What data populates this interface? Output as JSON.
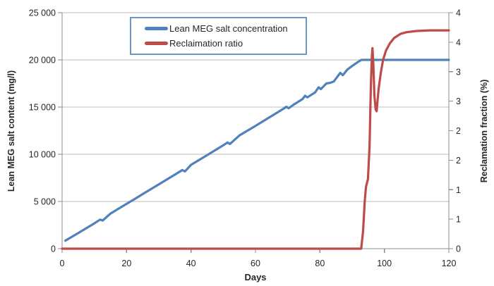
{
  "chart_data": {
    "type": "line",
    "title": "",
    "grid": {
      "horizontal": true,
      "vertical": false
    },
    "legend_position": "top-inside",
    "colors": {
      "axis_line": "#8C8C8C",
      "gridline": "#BDBDBD",
      "text": "#262626",
      "legend_border": "#6E96C4",
      "background": "#FFFFFF",
      "series_blue": "#4F81BD",
      "series_red": "#BE4B48"
    },
    "x_axis": {
      "title": "Days",
      "min": 0,
      "max": 120,
      "tick_values": [
        0,
        20,
        40,
        60,
        80,
        100,
        120
      ],
      "tick_labels": [
        "0",
        "20",
        "40",
        "60",
        "80",
        "100",
        "120"
      ]
    },
    "left_axis": {
      "title": "Lean MEG salt content (mg/l)",
      "min": 0,
      "max": 25000,
      "tick_values": [
        0,
        5000,
        10000,
        15000,
        20000,
        25000
      ],
      "tick_labels": [
        "0",
        "5 000",
        "10 000",
        "15 000",
        "20 000",
        "25 000"
      ]
    },
    "right_axis": {
      "title": "Reclamation fraction (%)",
      "min": 0,
      "max": 4,
      "tick_values": [
        0,
        0.5,
        1,
        1.5,
        2,
        2.5,
        3,
        3.5,
        4
      ],
      "tick_labels": [
        "0",
        "1",
        "1",
        "2",
        "2",
        "3",
        "3",
        "4",
        "4"
      ]
    },
    "series": [
      {
        "id": "lean-meg-salt-concentration",
        "name": "Lean MEG salt concentration",
        "axis": "left",
        "color": "#4F81BD",
        "points": [
          [
            1,
            850
          ],
          [
            5,
            1650
          ],
          [
            10,
            2680
          ],
          [
            11.8,
            3080
          ],
          [
            12.6,
            2980
          ],
          [
            15,
            3720
          ],
          [
            20,
            4750
          ],
          [
            22.4,
            5230
          ],
          [
            25,
            5780
          ],
          [
            30,
            6810
          ],
          [
            35,
            7840
          ],
          [
            37.3,
            8330
          ],
          [
            38.1,
            8180
          ],
          [
            40,
            8880
          ],
          [
            45,
            9910
          ],
          [
            50,
            10950
          ],
          [
            51.3,
            11250
          ],
          [
            52.1,
            11100
          ],
          [
            55,
            11990
          ],
          [
            60,
            13010
          ],
          [
            65,
            14050
          ],
          [
            68.8,
            14850
          ],
          [
            69.6,
            15040
          ],
          [
            70.3,
            14870
          ],
          [
            72,
            15290
          ],
          [
            74.6,
            15850
          ],
          [
            75.4,
            16200
          ],
          [
            76.1,
            16030
          ],
          [
            78.5,
            16550
          ],
          [
            79.6,
            17100
          ],
          [
            80.3,
            16900
          ],
          [
            82,
            17500
          ],
          [
            83.2,
            17570
          ],
          [
            84.3,
            17720
          ],
          [
            85.2,
            18120
          ],
          [
            86.3,
            18630
          ],
          [
            87.1,
            18380
          ],
          [
            88.5,
            18980
          ],
          [
            90,
            19350
          ],
          [
            91.5,
            19710
          ],
          [
            92.8,
            19990
          ],
          [
            93.5,
            20000
          ],
          [
            120,
            20000
          ]
        ]
      },
      {
        "id": "reclaimation-ratio",
        "name": "Reclaimation ratio",
        "axis": "right",
        "color": "#BE4B48",
        "points": [
          [
            0,
            0
          ],
          [
            92.8,
            0
          ],
          [
            93.4,
            0.3
          ],
          [
            93.9,
            0.8
          ],
          [
            94.3,
            1.05
          ],
          [
            94.9,
            1.18
          ],
          [
            95.4,
            1.75
          ],
          [
            95.8,
            2.75
          ],
          [
            96.1,
            3.25
          ],
          [
            96.3,
            3.4
          ],
          [
            96.6,
            3.1
          ],
          [
            96.9,
            2.6
          ],
          [
            97.3,
            2.36
          ],
          [
            97.6,
            2.33
          ],
          [
            98.2,
            2.7
          ],
          [
            98.9,
            2.98
          ],
          [
            99.6,
            3.2
          ],
          [
            100.5,
            3.36
          ],
          [
            101.7,
            3.48
          ],
          [
            103,
            3.57
          ],
          [
            105,
            3.64
          ],
          [
            107,
            3.67
          ],
          [
            110,
            3.69
          ],
          [
            114,
            3.7
          ],
          [
            120,
            3.7
          ]
        ]
      }
    ]
  }
}
